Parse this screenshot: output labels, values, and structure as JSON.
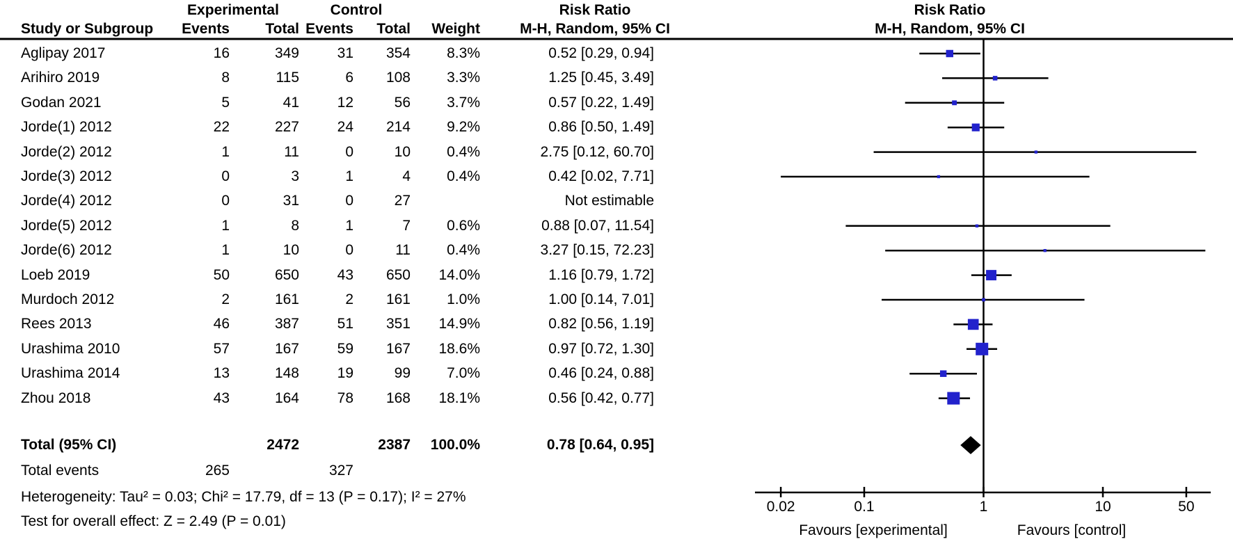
{
  "columns": {
    "study": "Study or Subgroup",
    "experimental": "Experimental",
    "control": "Control",
    "events": "Events",
    "total": "Total",
    "weight": "Weight",
    "risk_ratio": "Risk Ratio",
    "method": "M-H, Random, 95% CI"
  },
  "chart_data": {
    "type": "forest",
    "effect_measure": "Risk Ratio",
    "model": "M-H, Random, 95% CI",
    "x_scale": "log",
    "x_ticks": [
      "0.02",
      "0.1",
      "1",
      "10",
      "50"
    ],
    "x_tick_values": [
      0.02,
      0.1,
      1,
      10,
      50
    ],
    "xlim": [
      0.012,
      78
    ],
    "null_value": 1,
    "favours_left": "Favours [experimental]",
    "favours_right": "Favours [control]",
    "marker_color": "#2222CC",
    "diamond_color": "#000000",
    "line_color": "#000000",
    "studies": [
      {
        "name": "Aglipay 2017",
        "events_exp": "16",
        "total_exp": "349",
        "events_ctl": "31",
        "total_ctl": "354",
        "weight": "8.3%",
        "weight_pct": 8.3,
        "rr_text": "0.52 [0.29, 0.94]",
        "rr": 0.52,
        "lo": 0.29,
        "hi": 0.94
      },
      {
        "name": "Arihiro 2019",
        "events_exp": "8",
        "total_exp": "115",
        "events_ctl": "6",
        "total_ctl": "108",
        "weight": "3.3%",
        "weight_pct": 3.3,
        "rr_text": "1.25 [0.45, 3.49]",
        "rr": 1.25,
        "lo": 0.45,
        "hi": 3.49
      },
      {
        "name": "Godan 2021",
        "events_exp": "5",
        "total_exp": "41",
        "events_ctl": "12",
        "total_ctl": "56",
        "weight": "3.7%",
        "weight_pct": 3.7,
        "rr_text": "0.57 [0.22, 1.49]",
        "rr": 0.57,
        "lo": 0.22,
        "hi": 1.49
      },
      {
        "name": "Jorde(1) 2012",
        "events_exp": "22",
        "total_exp": "227",
        "events_ctl": "24",
        "total_ctl": "214",
        "weight": "9.2%",
        "weight_pct": 9.2,
        "rr_text": "0.86 [0.50, 1.49]",
        "rr": 0.86,
        "lo": 0.5,
        "hi": 1.49
      },
      {
        "name": "Jorde(2) 2012",
        "events_exp": "1",
        "total_exp": "11",
        "events_ctl": "0",
        "total_ctl": "10",
        "weight": "0.4%",
        "weight_pct": 0.4,
        "rr_text": "2.75 [0.12, 60.70]",
        "rr": 2.75,
        "lo": 0.12,
        "hi": 60.7
      },
      {
        "name": "Jorde(3) 2012",
        "events_exp": "0",
        "total_exp": "3",
        "events_ctl": "1",
        "total_ctl": "4",
        "weight": "0.4%",
        "weight_pct": 0.4,
        "rr_text": "0.42 [0.02, 7.71]",
        "rr": 0.42,
        "lo": 0.02,
        "hi": 7.71
      },
      {
        "name": "Jorde(4) 2012",
        "events_exp": "0",
        "total_exp": "31",
        "events_ctl": "0",
        "total_ctl": "27",
        "weight": "",
        "weight_pct": null,
        "rr_text": "Not estimable",
        "rr": null,
        "lo": null,
        "hi": null
      },
      {
        "name": "Jorde(5) 2012",
        "events_exp": "1",
        "total_exp": "8",
        "events_ctl": "1",
        "total_ctl": "7",
        "weight": "0.6%",
        "weight_pct": 0.6,
        "rr_text": "0.88 [0.07, 11.54]",
        "rr": 0.88,
        "lo": 0.07,
        "hi": 11.54
      },
      {
        "name": "Jorde(6) 2012",
        "events_exp": "1",
        "total_exp": "10",
        "events_ctl": "0",
        "total_ctl": "11",
        "weight": "0.4%",
        "weight_pct": 0.4,
        "rr_text": "3.27 [0.15, 72.23]",
        "rr": 3.27,
        "lo": 0.15,
        "hi": 72.23
      },
      {
        "name": "Loeb 2019",
        "events_exp": "50",
        "total_exp": "650",
        "events_ctl": "43",
        "total_ctl": "650",
        "weight": "14.0%",
        "weight_pct": 14.0,
        "rr_text": "1.16 [0.79, 1.72]",
        "rr": 1.16,
        "lo": 0.79,
        "hi": 1.72
      },
      {
        "name": "Murdoch 2012",
        "events_exp": "2",
        "total_exp": "161",
        "events_ctl": "2",
        "total_ctl": "161",
        "weight": "1.0%",
        "weight_pct": 1.0,
        "rr_text": "1.00 [0.14, 7.01]",
        "rr": 1.0,
        "lo": 0.14,
        "hi": 7.01
      },
      {
        "name": "Rees 2013",
        "events_exp": "46",
        "total_exp": "387",
        "events_ctl": "51",
        "total_ctl": "351",
        "weight": "14.9%",
        "weight_pct": 14.9,
        "rr_text": "0.82 [0.56, 1.19]",
        "rr": 0.82,
        "lo": 0.56,
        "hi": 1.19
      },
      {
        "name": "Urashima 2010",
        "events_exp": "57",
        "total_exp": "167",
        "events_ctl": "59",
        "total_ctl": "167",
        "weight": "18.6%",
        "weight_pct": 18.6,
        "rr_text": "0.97 [0.72, 1.30]",
        "rr": 0.97,
        "lo": 0.72,
        "hi": 1.3
      },
      {
        "name": "Urashima 2014",
        "events_exp": "13",
        "total_exp": "148",
        "events_ctl": "19",
        "total_ctl": "99",
        "weight": "7.0%",
        "weight_pct": 7.0,
        "rr_text": "0.46 [0.24, 0.88]",
        "rr": 0.46,
        "lo": 0.24,
        "hi": 0.88
      },
      {
        "name": "Zhou 2018",
        "events_exp": "43",
        "total_exp": "164",
        "events_ctl": "78",
        "total_ctl": "168",
        "weight": "18.1%",
        "weight_pct": 18.1,
        "rr_text": "0.56 [0.42, 0.77]",
        "rr": 0.56,
        "lo": 0.42,
        "hi": 0.77
      }
    ],
    "total": {
      "label": "Total (95% CI)",
      "total_exp": "2472",
      "total_ctl": "2387",
      "weight": "100.0%",
      "rr_text": "0.78 [0.64, 0.95]",
      "rr": 0.78,
      "lo": 0.64,
      "hi": 0.95
    },
    "total_events": {
      "label": "Total events",
      "events_exp": "265",
      "events_ctl": "327"
    },
    "heterogeneity": "Heterogeneity: Tau² = 0.03; Chi² = 17.79, df = 13 (P = 0.17); I² = 27%",
    "overall_effect": "Test for overall effect: Z = 2.49 (P = 0.01)"
  }
}
